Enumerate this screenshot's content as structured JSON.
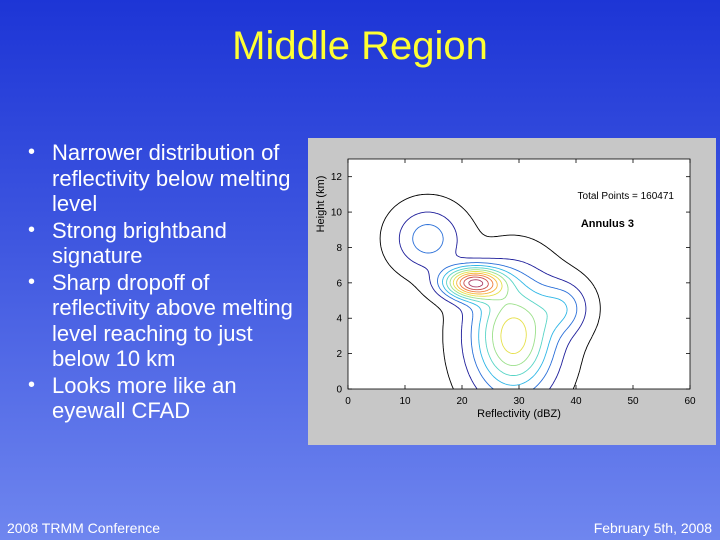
{
  "slide": {
    "title": "Middle Region",
    "bullets": [
      "Narrower distribution of reflectivity below melting level",
      "Strong brightband signature",
      "Sharp dropoff of reflectivity above melting level reaching to just below 10 km",
      "Looks more like an eyewall CFAD"
    ],
    "bullet_symbol": "•",
    "footer_left": "2008 TRMM Conference",
    "footer_right": "February 5th, 2008"
  },
  "chart_data": {
    "type": "heatmap",
    "title": "",
    "xlabel": "Reflectivity (dBZ)",
    "ylabel": "Height (km)",
    "xlim": [
      0,
      60
    ],
    "ylim": [
      0,
      13
    ],
    "xticks": [
      0,
      10,
      20,
      30,
      40,
      50,
      60
    ],
    "yticks": [
      0,
      2,
      4,
      6,
      8,
      10,
      12
    ],
    "annotations": [
      "Total Points = 160471",
      "Annulus 3"
    ],
    "colormap": [
      "#000000",
      "#1d1d9a",
      "#2a6fd8",
      "#2fb6e6",
      "#57d4c6",
      "#9be08a",
      "#e6e04a",
      "#f7b63a",
      "#ee7a3b",
      "#c94a4a",
      "#a83a63"
    ],
    "contour_levels": 11,
    "distribution": {
      "brightband": {
        "x": 22,
        "y": 6,
        "sx": 3.5,
        "sy": 0.6,
        "w": 1.0
      },
      "below_melting": {
        "x": 29,
        "y": 3,
        "sx": 5,
        "sy": 2.3,
        "w": 0.72
      },
      "upper_tail": {
        "x": 14,
        "y": 8.5,
        "sx": 4,
        "sy": 1.2,
        "w": 0.3
      },
      "right_shoulder": {
        "x": 38,
        "y": 4.6,
        "sx": 3,
        "sy": 1,
        "w": 0.25
      }
    }
  }
}
